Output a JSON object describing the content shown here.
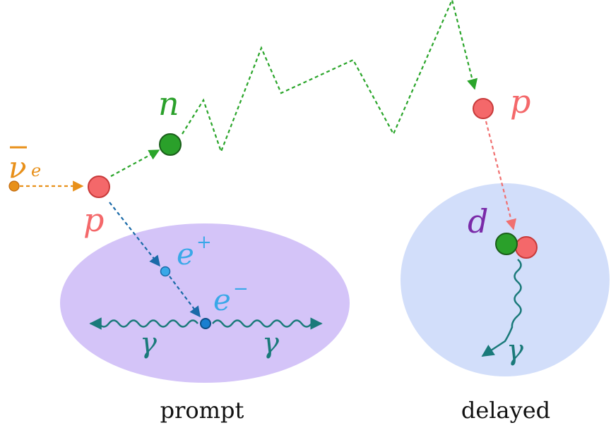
{
  "colors": {
    "neutrino": "#e8901a",
    "proton_fill": "#f4686a",
    "proton_stroke": "#c83a3a",
    "neutron_fill": "#2aa02a",
    "neutron_stroke": "#1a5e1a",
    "neutron_path": "#2aa52a",
    "positron": "#3aa8e8",
    "electron": "#1a7fd0",
    "positron_path": "#1a6aa8",
    "proton_path": "#f07070",
    "gamma": "#1a7a7a",
    "prompt_blob": "#d4c4f8",
    "delayed_blob": "#d2defa",
    "deuteron_label": "#7a2aa8"
  },
  "labels": {
    "neutrino_symbol": "ν",
    "neutrino_subscript": "e",
    "neutron": "n",
    "proton_initial": "p",
    "proton_capture": "p",
    "positron_base": "e",
    "positron_sup": "+",
    "electron_base": "e",
    "electron_sup": "−",
    "gamma_left": "γ",
    "gamma_right": "γ",
    "gamma_delayed": "γ",
    "deuteron": "d"
  },
  "captions": {
    "prompt": "prompt",
    "delayed": "delayed"
  },
  "icons": {
    "neutrino": "small-orange-dot",
    "proton": "red-circle",
    "neutron": "green-circle",
    "positron": "small-blue-dot",
    "electron": "small-blue-dot"
  }
}
